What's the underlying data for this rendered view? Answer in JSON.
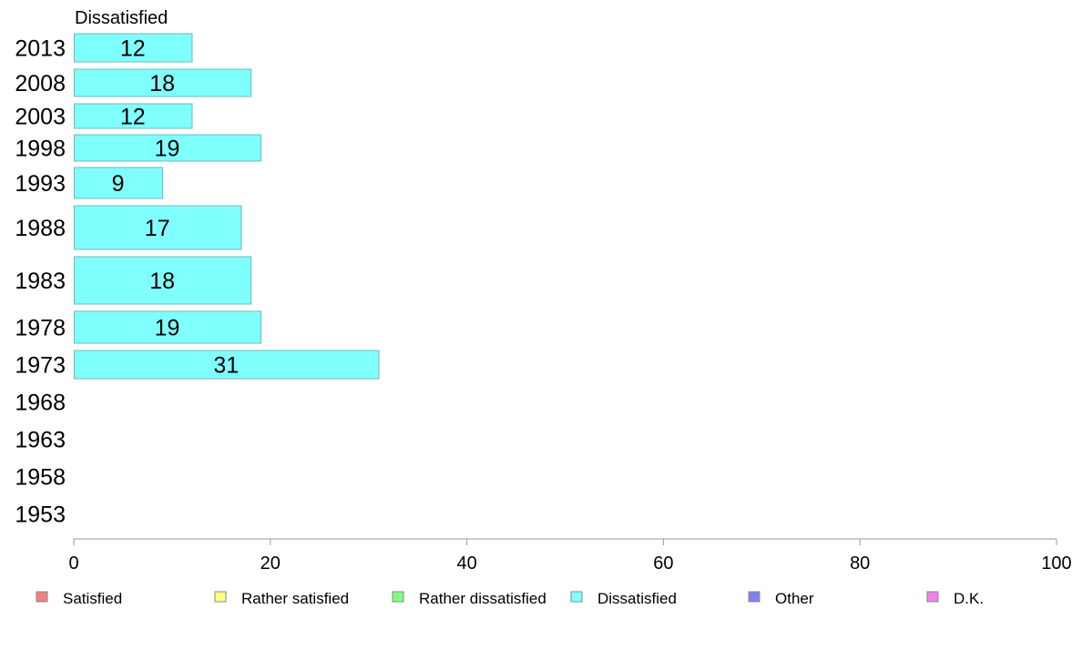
{
  "chart_data": {
    "type": "bar",
    "orientation": "horizontal",
    "title": "Dissatisfied",
    "categories": [
      "2013",
      "2008",
      "2003",
      "1998",
      "1993",
      "1988",
      "1983",
      "1978",
      "1973",
      "1968",
      "1963",
      "1958",
      "1953"
    ],
    "series": [
      {
        "name": "Dissatisfied",
        "color": "#80ffff",
        "values": [
          12,
          18,
          12,
          19,
          9,
          17,
          18,
          19,
          31,
          null,
          null,
          null,
          null
        ]
      }
    ],
    "data_labels": [
      "12",
      "18",
      "12",
      "19",
      "9",
      "17",
      "18",
      "19",
      "31",
      "",
      "",
      "",
      ""
    ],
    "xlim": [
      0,
      100
    ],
    "xticks": [
      "0",
      "20",
      "40",
      "60",
      "80",
      "100"
    ],
    "xlabel": "",
    "ylabel": "",
    "grid": false,
    "legend_placement": "bottom",
    "legend": [
      {
        "label": "Satisfied",
        "color": "#f08080"
      },
      {
        "label": "Rather satisfied",
        "color": "#ffff80"
      },
      {
        "label": "Rather dissatisfied",
        "color": "#80ff80"
      },
      {
        "label": "Dissatisfied",
        "color": "#80ffff"
      },
      {
        "label": "Other",
        "color": "#8080f0"
      },
      {
        "label": "D.K.",
        "color": "#f080f0"
      }
    ]
  }
}
